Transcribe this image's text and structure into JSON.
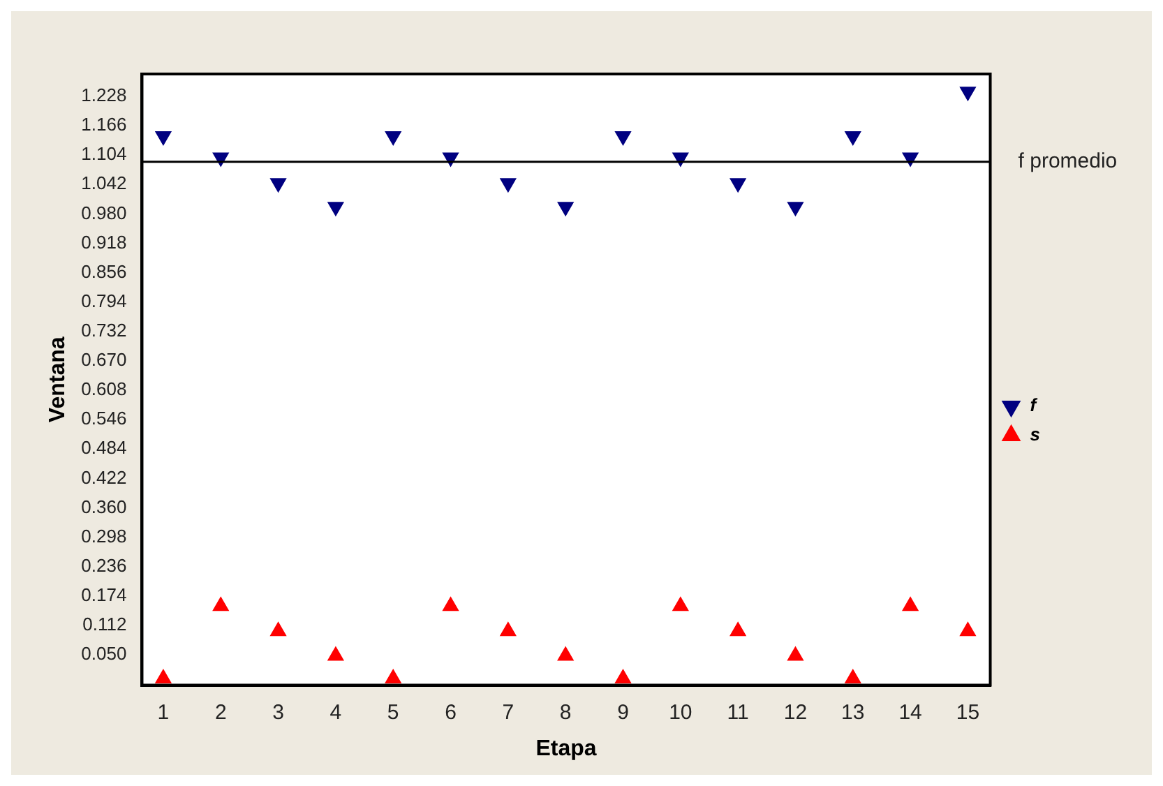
{
  "chart_data": {
    "type": "scatter",
    "xlabel": "Etapa",
    "ylabel": "Ventana",
    "x": [
      1,
      2,
      3,
      4,
      5,
      6,
      7,
      8,
      9,
      10,
      11,
      12,
      13,
      14,
      15
    ],
    "series": [
      {
        "name": "f",
        "color": "#000080",
        "marker": "triangle_down",
        "values": [
          1.144,
          1.099,
          1.045,
          0.995,
          1.144,
          1.099,
          1.045,
          0.995,
          1.144,
          1.099,
          1.045,
          0.995,
          1.144,
          1.099,
          1.238
        ]
      },
      {
        "name": "s",
        "color": "#ff0000",
        "marker": "triangle",
        "values": [
          0,
          0.153,
          0.1,
          0.048,
          0,
          0.153,
          0.1,
          0.048,
          0,
          0.153,
          0.1,
          0.048,
          0,
          0.153,
          0.1
        ]
      }
    ],
    "xlim": [
      0.63,
      15.39
    ],
    "xticks": [
      1,
      2,
      3,
      4,
      5,
      6,
      7,
      8,
      9,
      10,
      11,
      12,
      13,
      14,
      15
    ],
    "ylim": [
      -0.014,
      1.275
    ],
    "yticks": [
      {
        "value": 0.05,
        "label": "0.050"
      },
      0.112,
      0.174,
      0.236,
      0.298,
      {
        "value": 0.36,
        "label": "0.360"
      },
      0.422,
      0.484,
      0.546,
      0.608,
      {
        "value": 0.67,
        "label": "0.670"
      },
      0.732,
      0.794,
      0.856,
      0.918,
      {
        "value": 0.98,
        "label": "0.980"
      },
      1.042,
      1.104,
      1.166,
      1.228
    ],
    "ref_lines": [
      {
        "axis": "y",
        "value": 1.09,
        "label": "f promedio",
        "color": "#000000"
      }
    ],
    "grid": false,
    "legend": "right"
  }
}
